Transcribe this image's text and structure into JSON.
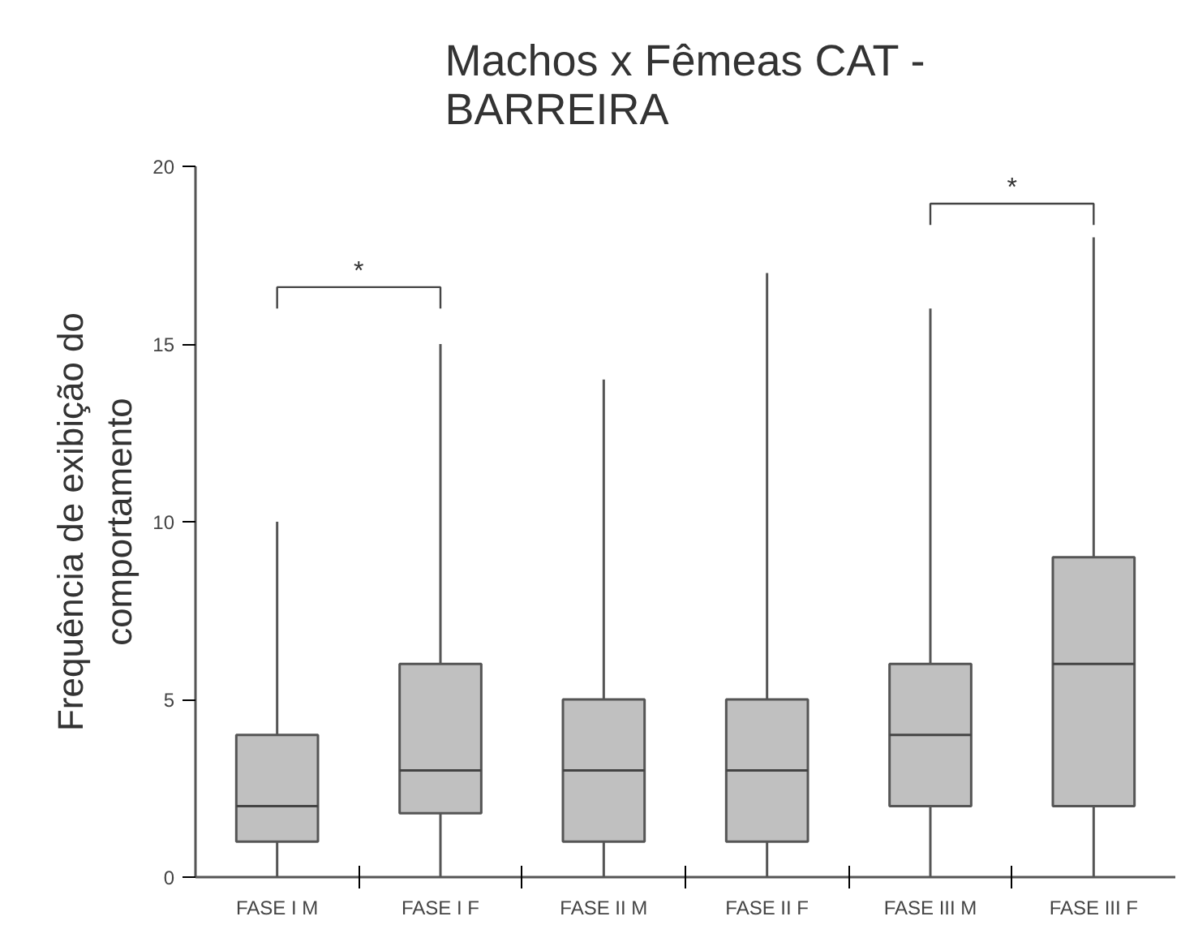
{
  "chart_data": {
    "type": "box",
    "title": "Machos x Fêmeas CAT -\nBARREIRA",
    "ylabel": "Frequência de exibição do\ncomportamento",
    "categories": [
      "FASE I M",
      "FASE I F",
      "FASE II M",
      "FASE II F",
      "FASE III M",
      "FASE III F"
    ],
    "boxes": [
      {
        "low": 0,
        "q1": 1,
        "median": 2,
        "q3": 4,
        "high": 10
      },
      {
        "low": 0,
        "q1": 1.8,
        "median": 3,
        "q3": 6,
        "high": 15
      },
      {
        "low": 0,
        "q1": 1,
        "median": 3,
        "q3": 5,
        "high": 14
      },
      {
        "low": 0,
        "q1": 1,
        "median": 3,
        "q3": 5,
        "high": 17
      },
      {
        "low": 0,
        "q1": 2,
        "median": 4,
        "q3": 6,
        "high": 16
      },
      {
        "low": 0,
        "q1": 2,
        "median": 6,
        "q3": 9,
        "high": 18
      }
    ],
    "color": "#c0c0c0",
    "ylim": [
      0,
      20
    ],
    "yticks": [
      0,
      5,
      10,
      15,
      20
    ],
    "grid": false,
    "annotations": [
      "*",
      "*"
    ]
  }
}
